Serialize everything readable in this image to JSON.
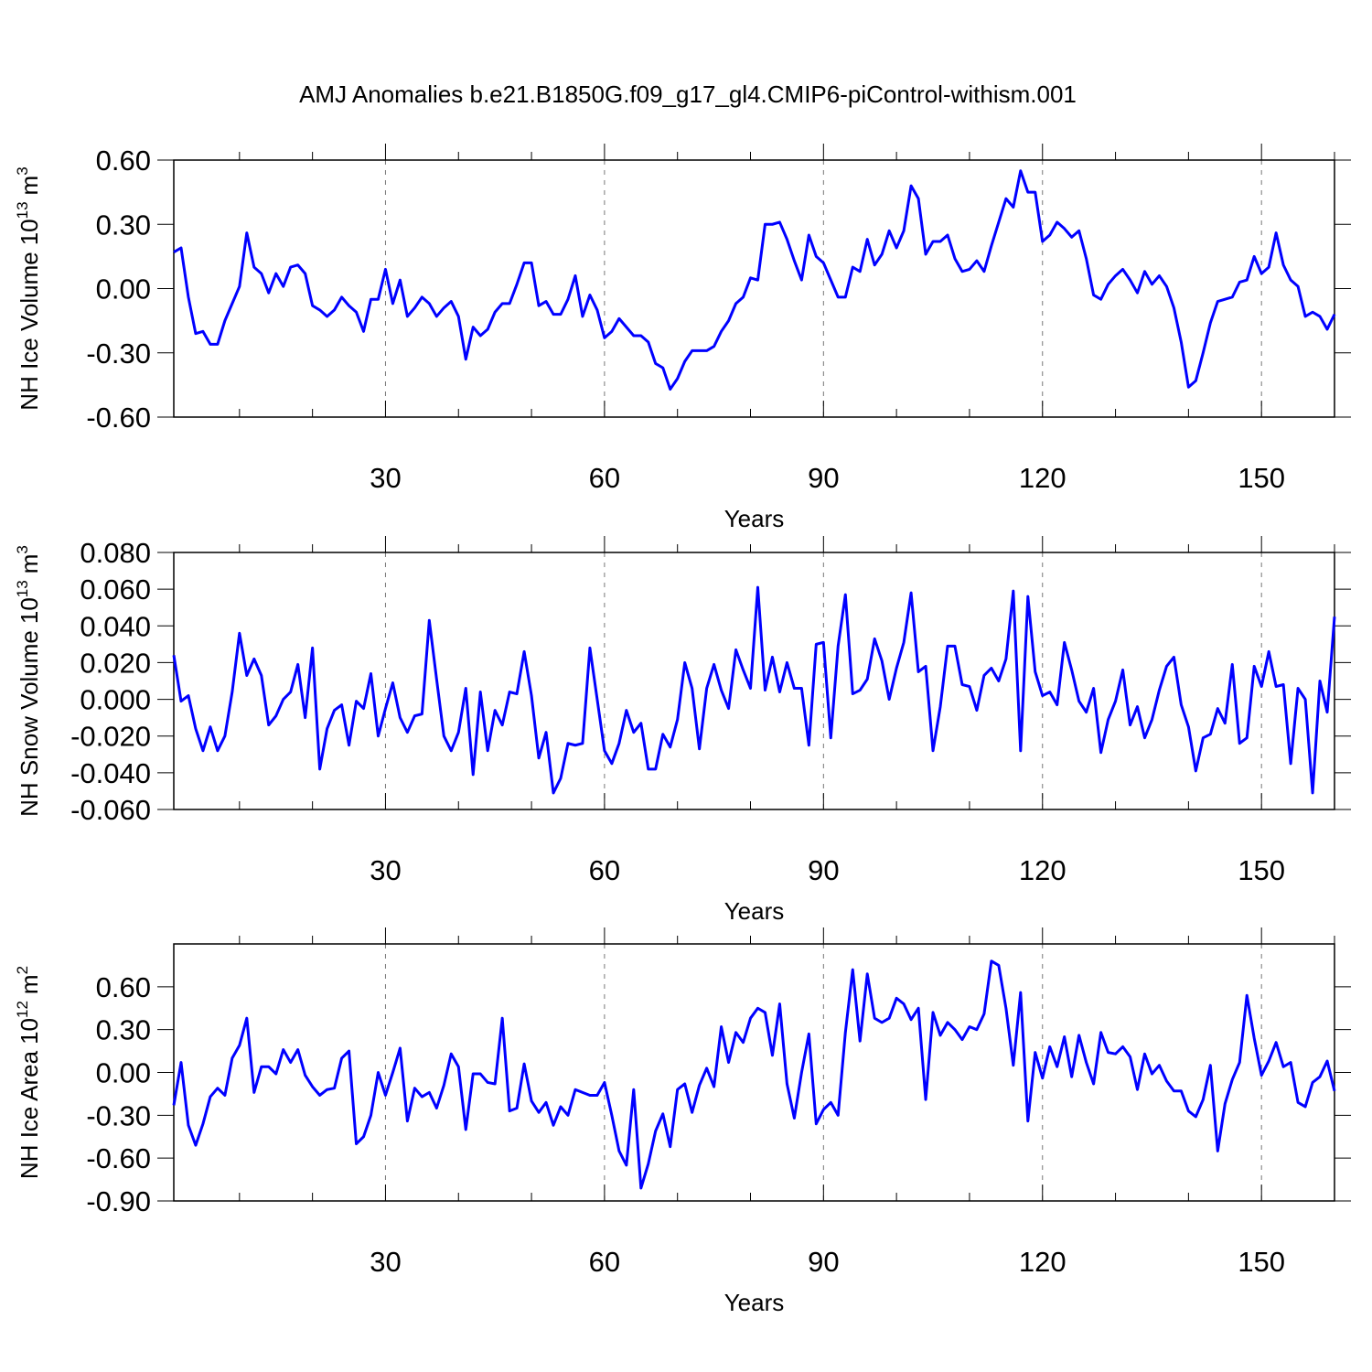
{
  "title": "AMJ Anomalies b.e21.B1850G.f09_g17_gl4.CMIP6-piControl-withism.001",
  "chart_data": [
    {
      "type": "line",
      "xlabel": "Years",
      "ylabel": {
        "name": "NH Ice Volume",
        "scale": "10",
        "scale_exp": "13",
        "unit": "m",
        "unit_exp": "3"
      },
      "xlim": [
        1,
        160
      ],
      "xticks": [
        30,
        60,
        90,
        120,
        150
      ],
      "xminor": [
        10,
        20,
        40,
        50,
        70,
        80,
        100,
        110,
        130,
        140,
        160
      ],
      "grid": true,
      "ylim": [
        -0.6,
        0.6
      ],
      "yticks": [
        {
          "value": -0.6,
          "label": "-0.60"
        },
        {
          "value": -0.3,
          "label": "-0.30"
        },
        {
          "value": 0,
          "label": "0.00"
        },
        {
          "value": 0.3,
          "label": "0.30"
        },
        {
          "value": 0.6,
          "label": "0.60"
        }
      ],
      "x": [
        1,
        2,
        3,
        4,
        5,
        6,
        7,
        8,
        9,
        10,
        11,
        12,
        13,
        14,
        15,
        16,
        17,
        18,
        19,
        20,
        21,
        22,
        23,
        24,
        25,
        26,
        27,
        28,
        29,
        30,
        31,
        32,
        33,
        34,
        35,
        36,
        37,
        38,
        39,
        40,
        41,
        42,
        43,
        44,
        45,
        46,
        47,
        48,
        49,
        50,
        51,
        52,
        53,
        54,
        55,
        56,
        57,
        58,
        59,
        60,
        61,
        62,
        63,
        64,
        65,
        66,
        67,
        68,
        69,
        70,
        71,
        72,
        73,
        74,
        75,
        76,
        77,
        78,
        79,
        80,
        81,
        82,
        83,
        84,
        85,
        86,
        87,
        88,
        89,
        90,
        91,
        92,
        93,
        94,
        95,
        96,
        97,
        98,
        99,
        100,
        101,
        102,
        103,
        104,
        105,
        106,
        107,
        108,
        109,
        110,
        111,
        112,
        113,
        114,
        115,
        116,
        117,
        118,
        119,
        120,
        121,
        122,
        123,
        124,
        125,
        126,
        127,
        128,
        129,
        130,
        131,
        132,
        133,
        134,
        135,
        136,
        137,
        138,
        139,
        140,
        141,
        142,
        143,
        144,
        145,
        146,
        147,
        148,
        149,
        150,
        151,
        152,
        153,
        154,
        155,
        156,
        157,
        158,
        159,
        160
      ],
      "series": [
        {
          "color": "#0000ff",
          "values": [
            0.17,
            0.19,
            -0.04,
            -0.21,
            -0.2,
            -0.26,
            -0.26,
            -0.15,
            -0.07,
            0.01,
            0.26,
            0.1,
            0.07,
            -0.02,
            0.07,
            0.01,
            0.1,
            0.11,
            0.07,
            -0.08,
            -0.1,
            -0.13,
            -0.1,
            -0.04,
            -0.08,
            -0.11,
            -0.2,
            -0.05,
            -0.05,
            0.09,
            -0.07,
            0.04,
            -0.13,
            -0.09,
            -0.04,
            -0.07,
            -0.13,
            -0.09,
            -0.06,
            -0.13,
            -0.33,
            -0.18,
            -0.22,
            -0.19,
            -0.11,
            -0.07,
            -0.07,
            0.02,
            0.12,
            0.12,
            -0.08,
            -0.06,
            -0.12,
            -0.12,
            -0.05,
            0.06,
            -0.13,
            -0.03,
            -0.1,
            -0.23,
            -0.2,
            -0.14,
            -0.18,
            -0.22,
            -0.22,
            -0.25,
            -0.35,
            -0.37,
            -0.47,
            -0.42,
            -0.34,
            -0.29,
            -0.29,
            -0.29,
            -0.27,
            -0.2,
            -0.15,
            -0.07,
            -0.04,
            0.05,
            0.04,
            0.3,
            0.3,
            0.31,
            0.23,
            0.13,
            0.04,
            0.25,
            0.15,
            0.12,
            0.04,
            -0.04,
            -0.04,
            0.1,
            0.08,
            0.23,
            0.11,
            0.16,
            0.27,
            0.19,
            0.27,
            0.48,
            0.42,
            0.16,
            0.22,
            0.22,
            0.25,
            0.14,
            0.08,
            0.09,
            0.13,
            0.08,
            0.2,
            0.31,
            0.42,
            0.38,
            0.55,
            0.45,
            0.45,
            0.22,
            0.25,
            0.31,
            0.28,
            0.24,
            0.27,
            0.14,
            -0.03,
            -0.05,
            0.02,
            0.06,
            0.09,
            0.04,
            -0.02,
            0.08,
            0.02,
            0.06,
            0.01,
            -0.09,
            -0.25,
            -0.46,
            -0.43,
            -0.3,
            -0.16,
            -0.06,
            -0.05,
            -0.04,
            0.03,
            0.04,
            0.15,
            0.07,
            0.1,
            0.26,
            0.11,
            0.04,
            0.01,
            -0.13,
            -0.11,
            -0.13,
            -0.19,
            -0.12
          ]
        }
      ]
    },
    {
      "type": "line",
      "xlabel": "Years",
      "ylabel": {
        "name": "NH Snow Volume",
        "scale": "10",
        "scale_exp": "13",
        "unit": "m",
        "unit_exp": "3"
      },
      "xlim": [
        1,
        160
      ],
      "xticks": [
        30,
        60,
        90,
        120,
        150
      ],
      "xminor": [
        10,
        20,
        40,
        50,
        70,
        80,
        100,
        110,
        130,
        140,
        160
      ],
      "grid": true,
      "ylim": [
        -0.06,
        0.08
      ],
      "yticks": [
        {
          "value": -0.06,
          "label": "-0.060"
        },
        {
          "value": -0.04,
          "label": "-0.040"
        },
        {
          "value": -0.02,
          "label": "-0.020"
        },
        {
          "value": 0,
          "label": "0.000"
        },
        {
          "value": 0.02,
          "label": "0.020"
        },
        {
          "value": 0.04,
          "label": "0.040"
        },
        {
          "value": 0.06,
          "label": "0.060"
        },
        {
          "value": 0.08,
          "label": "0.080"
        }
      ],
      "x": [
        1,
        2,
        3,
        4,
        5,
        6,
        7,
        8,
        9,
        10,
        11,
        12,
        13,
        14,
        15,
        16,
        17,
        18,
        19,
        20,
        21,
        22,
        23,
        24,
        25,
        26,
        27,
        28,
        29,
        30,
        31,
        32,
        33,
        34,
        35,
        36,
        37,
        38,
        39,
        40,
        41,
        42,
        43,
        44,
        45,
        46,
        47,
        48,
        49,
        50,
        51,
        52,
        53,
        54,
        55,
        56,
        57,
        58,
        59,
        60,
        61,
        62,
        63,
        64,
        65,
        66,
        67,
        68,
        69,
        70,
        71,
        72,
        73,
        74,
        75,
        76,
        77,
        78,
        79,
        80,
        81,
        82,
        83,
        84,
        85,
        86,
        87,
        88,
        89,
        90,
        91,
        92,
        93,
        94,
        95,
        96,
        97,
        98,
        99,
        100,
        101,
        102,
        103,
        104,
        105,
        106,
        107,
        108,
        109,
        110,
        111,
        112,
        113,
        114,
        115,
        116,
        117,
        118,
        119,
        120,
        121,
        122,
        123,
        124,
        125,
        126,
        127,
        128,
        129,
        130,
        131,
        132,
        133,
        134,
        135,
        136,
        137,
        138,
        139,
        140,
        141,
        142,
        143,
        144,
        145,
        146,
        147,
        148,
        149,
        150,
        151,
        152,
        153,
        154,
        155,
        156,
        157,
        158,
        159,
        160
      ],
      "series": [
        {
          "color": "#0000ff",
          "values": [
            0.024,
            -0.001,
            0.002,
            -0.016,
            -0.028,
            -0.015,
            -0.028,
            -0.02,
            0.004,
            0.036,
            0.013,
            0.022,
            0.013,
            -0.014,
            -0.009,
            0.0,
            0.004,
            0.019,
            -0.01,
            0.028,
            -0.038,
            -0.016,
            -0.006,
            -0.003,
            -0.025,
            -0.001,
            -0.005,
            0.014,
            -0.02,
            -0.005,
            0.009,
            -0.01,
            -0.018,
            -0.009,
            -0.008,
            0.043,
            0.011,
            -0.02,
            -0.028,
            -0.018,
            0.006,
            -0.041,
            0.004,
            -0.028,
            -0.006,
            -0.014,
            0.004,
            0.003,
            0.026,
            0.002,
            -0.032,
            -0.018,
            -0.051,
            -0.043,
            -0.024,
            -0.025,
            -0.024,
            0.028,
            0.0,
            -0.028,
            -0.035,
            -0.024,
            -0.006,
            -0.018,
            -0.013,
            -0.038,
            -0.038,
            -0.019,
            -0.026,
            -0.011,
            0.02,
            0.006,
            -0.027,
            0.006,
            0.019,
            0.005,
            -0.005,
            0.027,
            0.016,
            0.006,
            0.061,
            0.005,
            0.023,
            0.004,
            0.02,
            0.006,
            0.006,
            -0.025,
            0.03,
            0.031,
            -0.021,
            0.029,
            0.057,
            0.003,
            0.005,
            0.011,
            0.033,
            0.021,
            0.0,
            0.017,
            0.031,
            0.058,
            0.015,
            0.018,
            -0.028,
            -0.004,
            0.029,
            0.029,
            0.008,
            0.007,
            -0.006,
            0.013,
            0.017,
            0.01,
            0.022,
            0.059,
            -0.028,
            0.056,
            0.015,
            0.002,
            0.004,
            -0.003,
            0.031,
            0.016,
            -0.001,
            -0.007,
            0.006,
            -0.029,
            -0.011,
            -0.001,
            0.016,
            -0.014,
            -0.004,
            -0.021,
            -0.011,
            0.005,
            0.018,
            0.023,
            -0.003,
            -0.015,
            -0.039,
            -0.021,
            -0.019,
            -0.005,
            -0.013,
            0.019,
            -0.024,
            -0.021,
            0.018,
            0.007,
            0.026,
            0.007,
            0.008,
            -0.035,
            0.006,
            0.0,
            -0.051,
            0.01,
            -0.007,
            0.045
          ]
        }
      ]
    },
    {
      "type": "line",
      "xlabel": "Years",
      "ylabel": {
        "name": "NH Ice Area",
        "scale": "10",
        "scale_exp": "12",
        "unit": "m",
        "unit_exp": "2"
      },
      "xlim": [
        1,
        160
      ],
      "xticks": [
        30,
        60,
        90,
        120,
        150
      ],
      "xminor": [
        10,
        20,
        40,
        50,
        70,
        80,
        100,
        110,
        130,
        140,
        160
      ],
      "grid": true,
      "ylim": [
        -0.9,
        0.9
      ],
      "yticks": [
        {
          "value": -0.9,
          "label": "-0.90"
        },
        {
          "value": -0.6,
          "label": "-0.60"
        },
        {
          "value": -0.3,
          "label": "-0.30"
        },
        {
          "value": 0,
          "label": "0.00"
        },
        {
          "value": 0.3,
          "label": "0.30"
        },
        {
          "value": 0.6,
          "label": "0.60"
        }
      ],
      "x": [
        1,
        2,
        3,
        4,
        5,
        6,
        7,
        8,
        9,
        10,
        11,
        12,
        13,
        14,
        15,
        16,
        17,
        18,
        19,
        20,
        21,
        22,
        23,
        24,
        25,
        26,
        27,
        28,
        29,
        30,
        31,
        32,
        33,
        34,
        35,
        36,
        37,
        38,
        39,
        40,
        41,
        42,
        43,
        44,
        45,
        46,
        47,
        48,
        49,
        50,
        51,
        52,
        53,
        54,
        55,
        56,
        57,
        58,
        59,
        60,
        61,
        62,
        63,
        64,
        65,
        66,
        67,
        68,
        69,
        70,
        71,
        72,
        73,
        74,
        75,
        76,
        77,
        78,
        79,
        80,
        81,
        82,
        83,
        84,
        85,
        86,
        87,
        88,
        89,
        90,
        91,
        92,
        93,
        94,
        95,
        96,
        97,
        98,
        99,
        100,
        101,
        102,
        103,
        104,
        105,
        106,
        107,
        108,
        109,
        110,
        111,
        112,
        113,
        114,
        115,
        116,
        117,
        118,
        119,
        120,
        121,
        122,
        123,
        124,
        125,
        126,
        127,
        128,
        129,
        130,
        131,
        132,
        133,
        134,
        135,
        136,
        137,
        138,
        139,
        140,
        141,
        142,
        143,
        144,
        145,
        146,
        147,
        148,
        149,
        150,
        151,
        152,
        153,
        154,
        155,
        156,
        157,
        158,
        159,
        160
      ],
      "series": [
        {
          "color": "#0000ff",
          "values": [
            -0.23,
            0.07,
            -0.37,
            -0.51,
            -0.36,
            -0.17,
            -0.11,
            -0.16,
            0.1,
            0.19,
            0.38,
            -0.14,
            0.04,
            0.04,
            -0.01,
            0.16,
            0.07,
            0.16,
            -0.02,
            -0.1,
            -0.16,
            -0.12,
            -0.11,
            0.1,
            0.15,
            -0.5,
            -0.45,
            -0.3,
            0.0,
            -0.16,
            0.0,
            0.17,
            -0.34,
            -0.11,
            -0.17,
            -0.14,
            -0.25,
            -0.09,
            0.13,
            0.04,
            -0.4,
            -0.01,
            -0.01,
            -0.07,
            -0.08,
            0.38,
            -0.27,
            -0.25,
            0.06,
            -0.2,
            -0.28,
            -0.21,
            -0.37,
            -0.24,
            -0.3,
            -0.12,
            -0.14,
            -0.16,
            -0.16,
            -0.07,
            -0.3,
            -0.55,
            -0.65,
            -0.12,
            -0.81,
            -0.64,
            -0.41,
            -0.29,
            -0.52,
            -0.12,
            -0.08,
            -0.28,
            -0.09,
            0.03,
            -0.1,
            0.32,
            0.07,
            0.28,
            0.21,
            0.38,
            0.45,
            0.42,
            0.12,
            0.48,
            -0.08,
            -0.32,
            0.0,
            0.27,
            -0.36,
            -0.26,
            -0.21,
            -0.3,
            0.28,
            0.72,
            0.22,
            0.69,
            0.38,
            0.35,
            0.38,
            0.52,
            0.48,
            0.37,
            0.45,
            -0.19,
            0.42,
            0.26,
            0.35,
            0.3,
            0.23,
            0.32,
            0.3,
            0.41,
            0.78,
            0.75,
            0.45,
            0.05,
            0.56,
            -0.34,
            0.14,
            -0.04,
            0.18,
            0.04,
            0.25,
            -0.03,
            0.26,
            0.07,
            -0.08,
            0.28,
            0.14,
            0.13,
            0.18,
            0.11,
            -0.12,
            0.13,
            -0.01,
            0.05,
            -0.06,
            -0.13,
            -0.13,
            -0.27,
            -0.31,
            -0.19,
            0.05,
            -0.55,
            -0.22,
            -0.05,
            0.07,
            0.54,
            0.24,
            -0.02,
            0.08,
            0.21,
            0.04,
            0.07,
            -0.21,
            -0.24,
            -0.07,
            -0.03,
            0.08,
            -0.13
          ]
        }
      ]
    }
  ]
}
